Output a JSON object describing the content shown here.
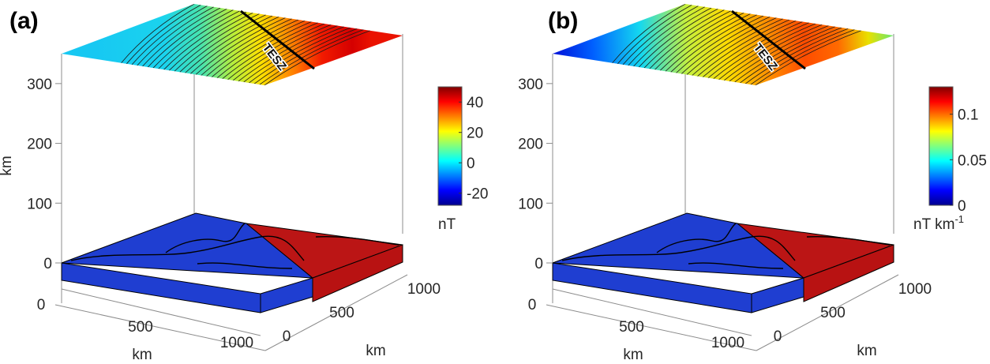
{
  "chart_data": [
    {
      "type": "3d-surface-contour",
      "panel_label": "(a)",
      "zlabel": "km",
      "xlabel": "km",
      "ylabel": "km",
      "z_ticks": [
        "0",
        "100",
        "200",
        "300"
      ],
      "x_ticks": [
        "0",
        "500",
        "1000"
      ],
      "y_ticks": [
        "0",
        "500",
        "1000"
      ],
      "zlim": [
        0,
        350
      ],
      "xlim": [
        0,
        1000
      ],
      "ylim": [
        0,
        1000
      ],
      "top_surface_altitude_km": 350,
      "annotation": "TESZ",
      "colorbar": {
        "label": "nT",
        "label_superscript": "",
        "ticks": [
          "-20",
          "0",
          "20",
          "40"
        ],
        "tick_values": [
          -20,
          0,
          20,
          40
        ],
        "range": [
          -28,
          50
        ],
        "colormap": "jet"
      },
      "surface_values": {
        "min_left": -5,
        "max_right": 50
      },
      "base_blocks": [
        {
          "name": "western block",
          "color": "#1f3ed1"
        },
        {
          "name": "eastern block",
          "color": "#bb1515"
        }
      ]
    },
    {
      "type": "3d-surface-contour",
      "panel_label": "(b)",
      "zlabel": "",
      "xlabel": "km",
      "ylabel": "km",
      "z_ticks": [
        "0",
        "100",
        "200",
        "300"
      ],
      "x_ticks": [
        "0",
        "500",
        "1000"
      ],
      "y_ticks": [
        "0",
        "500",
        "1000"
      ],
      "zlim": [
        0,
        350
      ],
      "xlim": [
        0,
        1000
      ],
      "ylim": [
        0,
        1000
      ],
      "top_surface_altitude_km": 350,
      "annotation": "TESZ",
      "colorbar": {
        "label": "nT km",
        "label_superscript": "-1",
        "ticks": [
          "0",
          "0.05",
          "0.1"
        ],
        "tick_values": [
          0,
          0.05,
          0.1
        ],
        "range": [
          0,
          0.13
        ],
        "colormap": "jet"
      },
      "surface_values": {
        "min_left": 0,
        "max_center": 0.115,
        "right_edge": 0.07
      },
      "base_blocks": [
        {
          "name": "western block",
          "color": "#1f3ed1"
        },
        {
          "name": "eastern block",
          "color": "#bb1515"
        }
      ]
    }
  ]
}
